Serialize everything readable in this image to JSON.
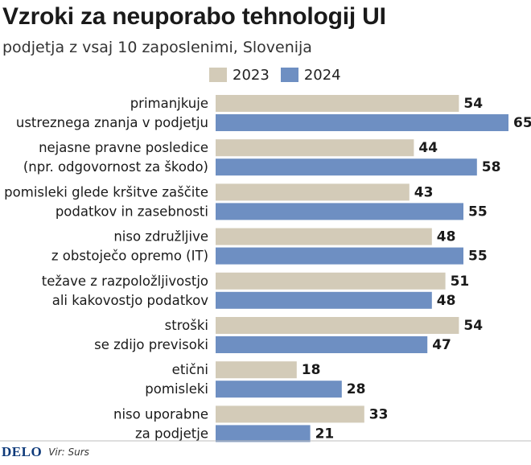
{
  "title": "Vzroki za neuporabo tehnologij UI",
  "subtitle": "podjetja z vsaj 10 zaposlenimi, Slovenija",
  "colors": {
    "2023": "#d3cbb8",
    "2024": "#6e8fc2",
    "text": "#1a1a1a"
  },
  "footer": {
    "brand": "DELO",
    "source": "Vir: Surs"
  },
  "chart_data": {
    "type": "bar",
    "orientation": "horizontal",
    "title": "Vzroki za neuporabo tehnologij UI",
    "subtitle": "podjetja z vsaj 10 zaposlenimi, Slovenija",
    "xlabel": "",
    "ylabel": "",
    "xlim": [
      0,
      65
    ],
    "legend": "top",
    "grid": false,
    "categories": [
      [
        "primanjkuje",
        "ustreznega znanja v podjetju"
      ],
      [
        "nejasne pravne posledice",
        "(npr. odgovornost za škodo)"
      ],
      [
        "pomisleki glede kršitve zaščite",
        "podatkov in zasebnosti"
      ],
      [
        "niso združljive",
        "z obstoječo opremo (IT)"
      ],
      [
        "težave z razpoložljivostjo",
        "ali kakovostjo podatkov"
      ],
      [
        "stroški",
        "se zdijo previsoki"
      ],
      [
        "etični",
        "pomisleki"
      ],
      [
        "niso uporabne",
        "za podjetje"
      ]
    ],
    "series": [
      {
        "name": "2023",
        "values": [
          54,
          44,
          43,
          48,
          51,
          54,
          18,
          33
        ]
      },
      {
        "name": "2024",
        "values": [
          65,
          58,
          55,
          55,
          48,
          47,
          28,
          21
        ]
      }
    ]
  }
}
